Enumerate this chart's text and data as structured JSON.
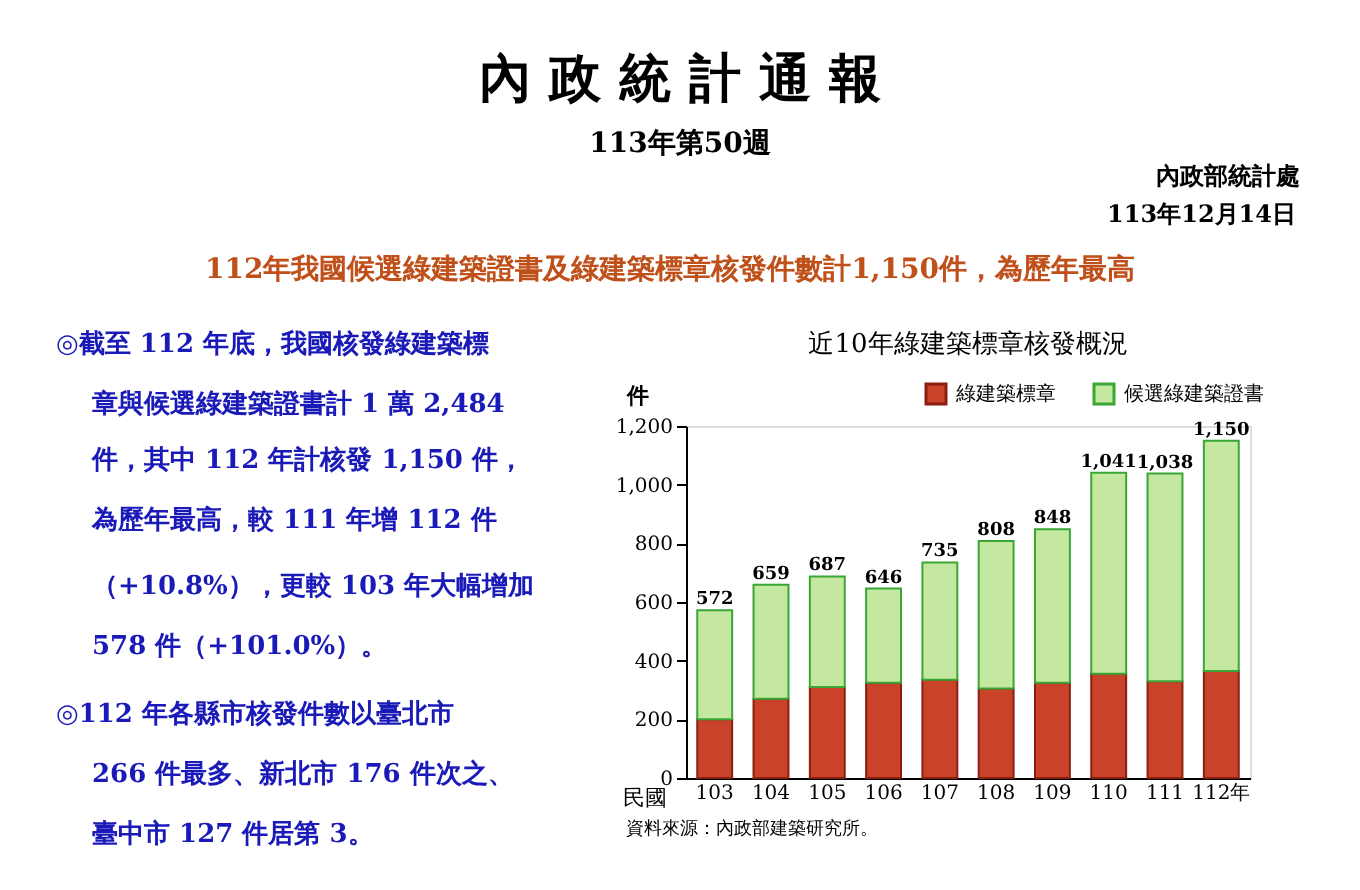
{
  "chart_data": {
    "type": "bar",
    "title": "近10年綠建築標章核發概況",
    "ylabel": "件",
    "xlabel": "民國",
    "categories": [
      "103",
      "104",
      "105",
      "106",
      "107",
      "108",
      "109",
      "110",
      "111",
      "112年"
    ],
    "stacked": true,
    "series": [
      {
        "name": "綠建築標章",
        "color": "#c9432b",
        "values": [
          200,
          270,
          310,
          325,
          335,
          305,
          325,
          355,
          330,
          365
        ]
      },
      {
        "name": "候選綠建築證書",
        "color": "#c5e8a0",
        "values": [
          372,
          389,
          377,
          321,
          400,
          503,
          523,
          686,
          708,
          785
        ]
      }
    ],
    "totals": [
      "572",
      "659",
      "687",
      "646",
      "735",
      "808",
      "848",
      "1,041",
      "1,038",
      "1,150"
    ],
    "ylim": [
      0,
      1200
    ],
    "yticks": [
      0,
      200,
      400,
      600,
      800,
      {
        "value": 1000,
        "label": "1,000"
      },
      {
        "value": 1200,
        "label": "1,200"
      }
    ],
    "grid": false,
    "legend": "top right",
    "annotations": [
      "內 政 統 計 通 報",
      "113年第50週",
      "內政部統計處",
      "113年12月14日",
      "112年我國候選綠建築證書及綠建築標章核發件數計1,150件，為歷年最高",
      "◎截至 112 年底，我國核發綠建築標",
      "章與候選綠建築證書計 1 萬 2,484",
      "件，其中 112 年計核發 1,150 件，",
      "為歷年最高，較 111 年增 112 件",
      "（+10.8%），更較 103 年大幅增加",
      "578 件（+101.0%）。",
      "◎112 年各縣市核發件數以臺北市",
      "266 件最多、新北市 176 件次之、",
      "臺中市 127 件居第 3。",
      "資料來源：內政部建築研究所。"
    ]
  }
}
